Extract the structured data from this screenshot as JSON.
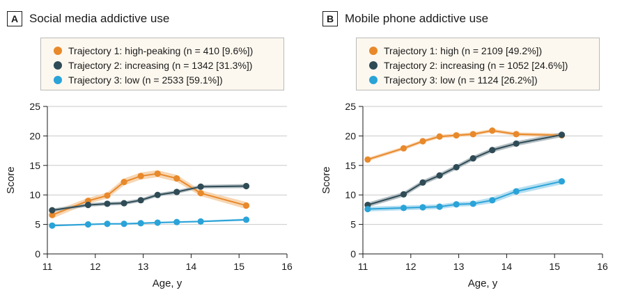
{
  "chart_data": [
    {
      "type": "line",
      "panel_letter": "A",
      "title": "Social media addictive use",
      "xlabel": "Age, y",
      "ylabel": "Score",
      "xlim": [
        11,
        16
      ],
      "ylim": [
        0,
        25
      ],
      "xticks": [
        "11",
        "12",
        "13",
        "14",
        "15",
        "16"
      ],
      "yticks": [
        "0",
        "5",
        "10",
        "15",
        "20",
        "25"
      ],
      "grid": "horizontal",
      "legend_position": "top",
      "series": [
        {
          "name": "Trajectory 1: high-peaking (n = 410 [9.6%])",
          "color": "#e8892b",
          "band_color": "#f6cfa6",
          "x": [
            11.1,
            11.85,
            12.25,
            12.6,
            12.95,
            13.3,
            13.7,
            14.2,
            15.15
          ],
          "y": [
            6.6,
            9.0,
            9.9,
            12.2,
            13.2,
            13.6,
            12.8,
            10.3,
            8.2
          ],
          "band": [
            0.6,
            0.5,
            0.5,
            0.6,
            0.6,
            0.6,
            0.6,
            0.5,
            0.6
          ]
        },
        {
          "name": "Trajectory 2: increasing (n = 1342 [31.3%])",
          "color": "#2f4b56",
          "band_color": "#a7b4b9",
          "x": [
            11.1,
            11.85,
            12.25,
            12.6,
            12.95,
            13.3,
            13.7,
            14.2,
            15.15
          ],
          "y": [
            7.4,
            8.3,
            8.5,
            8.6,
            9.1,
            10.0,
            10.5,
            11.4,
            11.5
          ],
          "band": [
            0.3,
            0.3,
            0.3,
            0.3,
            0.3,
            0.3,
            0.3,
            0.3,
            0.35
          ]
        },
        {
          "name": "Trajectory 3: low (n = 2533 [59.1%])",
          "color": "#2aa3d8",
          "band_color": "#a9d9ef",
          "x": [
            11.1,
            11.85,
            12.25,
            12.6,
            12.95,
            13.3,
            13.7,
            14.2,
            15.15
          ],
          "y": [
            4.8,
            5.0,
            5.1,
            5.1,
            5.2,
            5.3,
            5.4,
            5.5,
            5.8
          ],
          "band": [
            0.15,
            0.15,
            0.15,
            0.15,
            0.15,
            0.15,
            0.15,
            0.15,
            0.2
          ]
        }
      ]
    },
    {
      "type": "line",
      "panel_letter": "B",
      "title": "Mobile phone addictive use",
      "xlabel": "Age, y",
      "ylabel": "Score",
      "xlim": [
        11,
        16
      ],
      "ylim": [
        0,
        25
      ],
      "xticks": [
        "11",
        "12",
        "13",
        "14",
        "15",
        "16"
      ],
      "yticks": [
        "0",
        "5",
        "10",
        "15",
        "20",
        "25"
      ],
      "grid": "horizontal",
      "legend_position": "top",
      "series": [
        {
          "name": "Trajectory 1: high (n = 2109 [49.2%])",
          "color": "#e8892b",
          "band_color": "#f6cfa6",
          "x": [
            11.1,
            11.85,
            12.25,
            12.6,
            12.95,
            13.3,
            13.7,
            14.2,
            15.15
          ],
          "y": [
            16.0,
            17.9,
            19.1,
            19.9,
            20.1,
            20.3,
            20.9,
            20.3,
            20.1
          ],
          "band": [
            0.3,
            0.3,
            0.3,
            0.3,
            0.3,
            0.3,
            0.3,
            0.3,
            0.35
          ]
        },
        {
          "name": "Trajectory 2: increasing (n = 1052 [24.6%])",
          "color": "#2f4b56",
          "band_color": "#a7b4b9",
          "x": [
            11.1,
            11.85,
            12.25,
            12.6,
            12.95,
            13.3,
            13.7,
            14.2,
            15.15
          ],
          "y": [
            8.3,
            10.1,
            12.1,
            13.3,
            14.7,
            16.2,
            17.6,
            18.7,
            20.2
          ],
          "band": [
            0.4,
            0.4,
            0.4,
            0.4,
            0.4,
            0.4,
            0.4,
            0.4,
            0.4
          ]
        },
        {
          "name": "Trajectory 3: low (n = 1124 [26.2%])",
          "color": "#2aa3d8",
          "band_color": "#a9d9ef",
          "x": [
            11.1,
            11.85,
            12.25,
            12.6,
            12.95,
            13.3,
            13.7,
            14.2,
            15.15
          ],
          "y": [
            7.6,
            7.8,
            7.9,
            8.0,
            8.4,
            8.5,
            9.1,
            10.6,
            12.3
          ],
          "band": [
            0.4,
            0.4,
            0.4,
            0.4,
            0.4,
            0.4,
            0.5,
            0.5,
            0.5
          ]
        }
      ]
    }
  ]
}
